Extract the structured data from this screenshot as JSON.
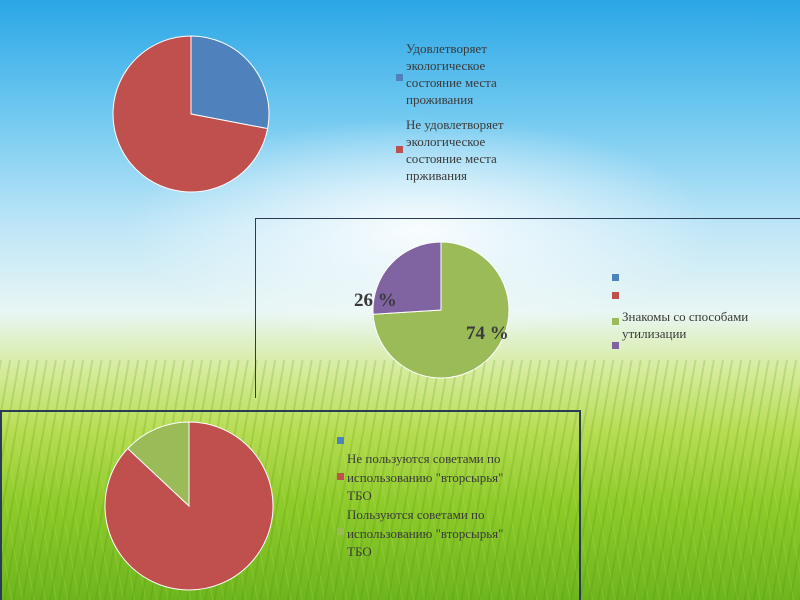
{
  "chart_data": [
    {
      "type": "pie",
      "title": "",
      "series": [
        {
          "values": [
            28,
            72
          ]
        }
      ],
      "categories": [
        "Удовлетворяет экологическое состояние места проживания",
        "Не удовлетворяет экологическое состояние места прживания"
      ],
      "legend": {
        "position": "right",
        "items": [
          {
            "lines": [
              "Удовлетворяет",
              "экологическое",
              "состояние места",
              "проживания"
            ],
            "color": "#4f81bd"
          },
          {
            "lines": [
              "Не удовлетворяет",
              "экологическое",
              "состояние места",
              "прживания"
            ],
            "color": "#c0504d"
          }
        ]
      }
    },
    {
      "type": "pie",
      "title": "",
      "series": [
        {
          "values": [
            74,
            26
          ]
        }
      ],
      "categories": [
        "Знакомы со способами утилизации",
        ""
      ],
      "data_labels": [
        "74 %",
        "26 %"
      ],
      "legend": {
        "position": "right",
        "items": [
          {
            "lines": [
              ""
            ],
            "color": "#4f81bd"
          },
          {
            "lines": [
              ""
            ],
            "color": "#c0504d"
          },
          {
            "lines": [
              "Знакомы со способами",
              "утилизации"
            ],
            "color": "#9bbb59"
          },
          {
            "lines": [
              ""
            ],
            "color": "#8064a2"
          }
        ]
      }
    },
    {
      "type": "pie",
      "title": "",
      "series": [
        {
          "values": [
            87,
            13
          ]
        }
      ],
      "categories": [
        "Не пользуются советами по использованию \"вторсырья\" ТБО",
        "Пользуются советами по использованию \"вторсырья\" ТБО"
      ],
      "legend": {
        "position": "right",
        "items": [
          {
            "lines": [
              ""
            ],
            "color": "#4f81bd"
          },
          {
            "lines": [
              "Не пользуются советами по",
              "использованию \"вторсырья\"",
              "ТБО"
            ],
            "color": "#c0504d"
          },
          {
            "lines": [
              "Пользуются советами по",
              "использованию \"вторсырья\"",
              "ТБО"
            ],
            "color": "#9bbb59"
          }
        ]
      }
    }
  ]
}
